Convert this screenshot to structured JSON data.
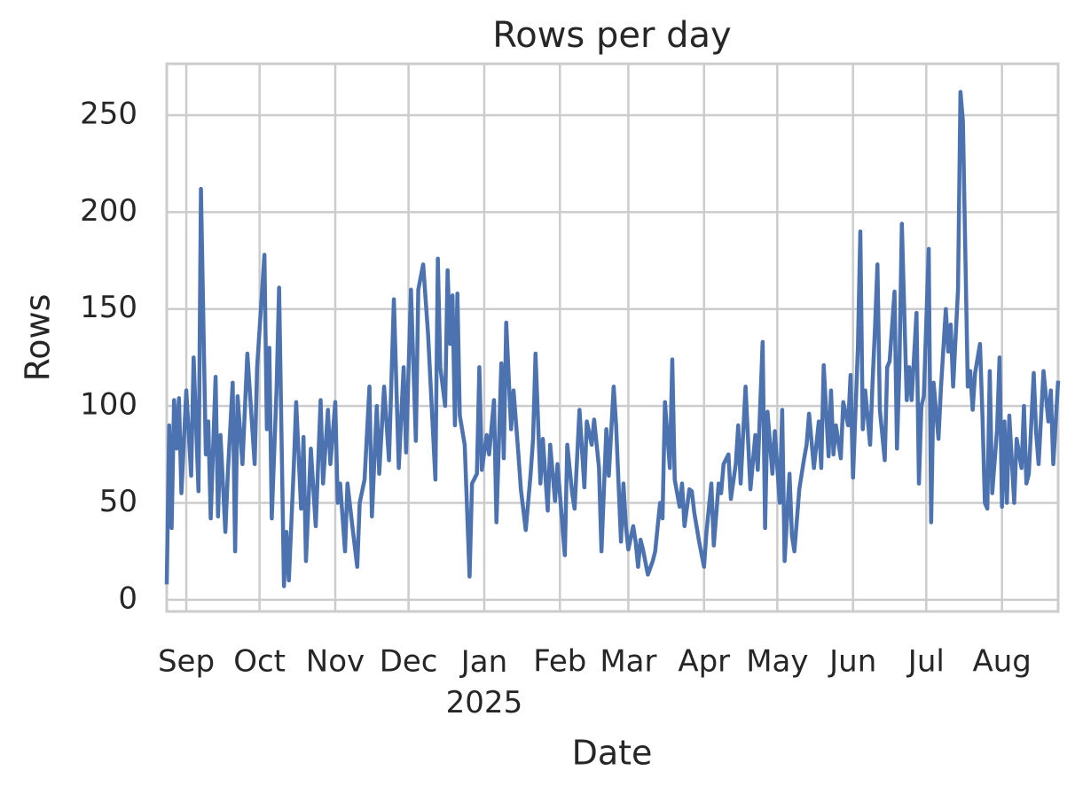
{
  "chart_data": {
    "type": "line",
    "title": "Rows per day",
    "xlabel": "Date",
    "ylabel": "Rows",
    "color": "#4c72b0",
    "grid": true,
    "xlim": [
      "2024-08-24",
      "2025-08-24"
    ],
    "xticks": [
      {
        "value": "2024-09-01",
        "label": "Sep"
      },
      {
        "value": "2024-10-01",
        "label": "Oct"
      },
      {
        "value": "2024-11-01",
        "label": "Nov"
      },
      {
        "value": "2024-12-01",
        "label": "Dec"
      },
      {
        "value": "2025-01-01",
        "label": "Jan\n2025"
      },
      {
        "value": "2025-02-01",
        "label": "Feb"
      },
      {
        "value": "2025-03-01",
        "label": "Mar"
      },
      {
        "value": "2025-04-01",
        "label": "Apr"
      },
      {
        "value": "2025-05-01",
        "label": "May"
      },
      {
        "value": "2025-06-01",
        "label": "Jun"
      },
      {
        "value": "2025-07-01",
        "label": "Jul"
      },
      {
        "value": "2025-08-01",
        "label": "Aug"
      }
    ],
    "ylim": [
      -6,
      276.5
    ],
    "yticks": [
      0,
      50,
      100,
      150,
      200,
      250
    ],
    "x": [
      "2024-08-24",
      "2024-08-25",
      "2024-08-26",
      "2024-08-27",
      "2024-08-28",
      "2024-08-29",
      "2024-08-30",
      "2024-09-01",
      "2024-09-03",
      "2024-09-04",
      "2024-09-06",
      "2024-09-07",
      "2024-09-09",
      "2024-09-10",
      "2024-09-11",
      "2024-09-13",
      "2024-09-14",
      "2024-09-15",
      "2024-09-17",
      "2024-09-18",
      "2024-09-20",
      "2024-09-21",
      "2024-09-22",
      "2024-09-24",
      "2024-09-26",
      "2024-09-29",
      "2024-09-30",
      "2024-10-03",
      "2024-10-04",
      "2024-10-05",
      "2024-10-06",
      "2024-10-08",
      "2024-10-09",
      "2024-10-11",
      "2024-10-12",
      "2024-10-13",
      "2024-10-15",
      "2024-10-16",
      "2024-10-18",
      "2024-10-19",
      "2024-10-20",
      "2024-10-22",
      "2024-10-24",
      "2024-10-26",
      "2024-10-27",
      "2024-10-29",
      "2024-10-30",
      "2024-11-01",
      "2024-11-02",
      "2024-11-03",
      "2024-11-05",
      "2024-11-06",
      "2024-11-08",
      "2024-11-10",
      "2024-11-11",
      "2024-11-13",
      "2024-11-15",
      "2024-11-16",
      "2024-11-18",
      "2024-11-19",
      "2024-11-21",
      "2024-11-23",
      "2024-11-25",
      "2024-11-27",
      "2024-11-29",
      "2024-11-30",
      "2024-12-02",
      "2024-12-04",
      "2024-12-05",
      "2024-12-07",
      "2024-12-08",
      "2024-12-09",
      "2024-12-12",
      "2024-12-13",
      "2024-12-14",
      "2024-12-16",
      "2024-12-17",
      "2024-12-18",
      "2024-12-19",
      "2024-12-20",
      "2024-12-21",
      "2024-12-22",
      "2024-12-24",
      "2024-12-26",
      "2024-12-27",
      "2024-12-29",
      "2024-12-30",
      "2024-12-31",
      "2025-01-02",
      "2025-01-03",
      "2025-01-05",
      "2025-01-06",
      "2025-01-08",
      "2025-01-09",
      "2025-01-10",
      "2025-01-12",
      "2025-01-13",
      "2025-01-15",
      "2025-01-16",
      "2025-01-18",
      "2025-01-20",
      "2025-01-21",
      "2025-01-22",
      "2025-01-24",
      "2025-01-25",
      "2025-01-27",
      "2025-01-28",
      "2025-01-30",
      "2025-01-31",
      "2025-02-03",
      "2025-02-04",
      "2025-02-06",
      "2025-02-07",
      "2025-02-09",
      "2025-02-11",
      "2025-02-12",
      "2025-02-14",
      "2025-02-15",
      "2025-02-17",
      "2025-02-18",
      "2025-02-20",
      "2025-02-21",
      "2025-02-23",
      "2025-02-24",
      "2025-02-26",
      "2025-02-27",
      "2025-02-28",
      "2025-03-01",
      "2025-03-03",
      "2025-03-04",
      "2025-03-05",
      "2025-03-06",
      "2025-03-07",
      "2025-03-09",
      "2025-03-11",
      "2025-03-12",
      "2025-03-14",
      "2025-03-15",
      "2025-03-16",
      "2025-03-18",
      "2025-03-19",
      "2025-03-20",
      "2025-03-22",
      "2025-03-23",
      "2025-03-24",
      "2025-03-26",
      "2025-03-27",
      "2025-03-28",
      "2025-03-30",
      "2025-04-01",
      "2025-04-02",
      "2025-04-04",
      "2025-04-05",
      "2025-04-07",
      "2025-04-08",
      "2025-04-09",
      "2025-04-11",
      "2025-04-12",
      "2025-04-14",
      "2025-04-15",
      "2025-04-16",
      "2025-04-18",
      "2025-04-20",
      "2025-04-22",
      "2025-04-23",
      "2025-04-25",
      "2025-04-26",
      "2025-04-27",
      "2025-04-29",
      "2025-04-30",
      "2025-05-02",
      "2025-05-03",
      "2025-05-04",
      "2025-05-06",
      "2025-05-07",
      "2025-05-08",
      "2025-05-10",
      "2025-05-12",
      "2025-05-13",
      "2025-05-14",
      "2025-05-16",
      "2025-05-18",
      "2025-05-19",
      "2025-05-20",
      "2025-05-22",
      "2025-05-23",
      "2025-05-24",
      "2025-05-25",
      "2025-05-27",
      "2025-05-28",
      "2025-05-30",
      "2025-05-31",
      "2025-06-01",
      "2025-06-03",
      "2025-06-04",
      "2025-06-05",
      "2025-06-06",
      "2025-06-08",
      "2025-06-09",
      "2025-06-10",
      "2025-06-11",
      "2025-06-12",
      "2025-06-14",
      "2025-06-15",
      "2025-06-16",
      "2025-06-18",
      "2025-06-19",
      "2025-06-20",
      "2025-06-21",
      "2025-06-23",
      "2025-06-24",
      "2025-06-25",
      "2025-06-27",
      "2025-06-28",
      "2025-06-29",
      "2025-06-30",
      "2025-07-02",
      "2025-07-03",
      "2025-07-04",
      "2025-07-06",
      "2025-07-07",
      "2025-07-09",
      "2025-07-10",
      "2025-07-11",
      "2025-07-12",
      "2025-07-14",
      "2025-07-15",
      "2025-07-16",
      "2025-07-18",
      "2025-07-19",
      "2025-07-20",
      "2025-07-21",
      "2025-07-23",
      "2025-07-24",
      "2025-07-25",
      "2025-07-26",
      "2025-07-27",
      "2025-07-28",
      "2025-07-30",
      "2025-07-31",
      "2025-08-01",
      "2025-08-02",
      "2025-08-03",
      "2025-08-04",
      "2025-08-06",
      "2025-08-07",
      "2025-08-09",
      "2025-08-10",
      "2025-08-11",
      "2025-08-12",
      "2025-08-14",
      "2025-08-15",
      "2025-08-16",
      "2025-08-18",
      "2025-08-20",
      "2025-08-21",
      "2025-08-22",
      "2025-08-24"
    ],
    "values": [
      8,
      90,
      37,
      103,
      78,
      104,
      55,
      108,
      64,
      125,
      56,
      212,
      75,
      92,
      42,
      115,
      43,
      85,
      35,
      65,
      112,
      25,
      105,
      70,
      127,
      70,
      120,
      178,
      88,
      130,
      42,
      110,
      161,
      7,
      35,
      10,
      68,
      102,
      47,
      84,
      20,
      78,
      38,
      103,
      60,
      98,
      70,
      102,
      50,
      60,
      25,
      60,
      38,
      17,
      50,
      62,
      110,
      43,
      100,
      65,
      110,
      72,
      155,
      68,
      120,
      76,
      160,
      82,
      160,
      173,
      155,
      137,
      62,
      176,
      120,
      100,
      170,
      132,
      157,
      90,
      158,
      95,
      80,
      12,
      60,
      65,
      120,
      67,
      85,
      75,
      103,
      40,
      122,
      73,
      143,
      88,
      108,
      75,
      57,
      36,
      65,
      83,
      127,
      60,
      83,
      46,
      80,
      51,
      70,
      23,
      80,
      55,
      47,
      98,
      58,
      92,
      80,
      93,
      68,
      25,
      88,
      64,
      110,
      90,
      30,
      60,
      38,
      26,
      38,
      30,
      17,
      31,
      26,
      13,
      20,
      25,
      50,
      42,
      102,
      68,
      124,
      62,
      48,
      60,
      38,
      57,
      56,
      45,
      30,
      17,
      35,
      60,
      28,
      60,
      55,
      70,
      75,
      52,
      70,
      90,
      60,
      110,
      57,
      85,
      67,
      133,
      37,
      97,
      65,
      87,
      50,
      98,
      20,
      65,
      33,
      25,
      57,
      73,
      80,
      96,
      68,
      92,
      68,
      121,
      74,
      108,
      75,
      90,
      73,
      102,
      90,
      116,
      63,
      130,
      190,
      88,
      108,
      80,
      112,
      140,
      173,
      98,
      72,
      120,
      123,
      159,
      78,
      120,
      194,
      103,
      120,
      103,
      148,
      60,
      100,
      105,
      181,
      40,
      112,
      83,
      109,
      150,
      128,
      142,
      110,
      160,
      262,
      247,
      110,
      118,
      98,
      117,
      132,
      95,
      50,
      47,
      118,
      55,
      88,
      125,
      48,
      92,
      50,
      95,
      50,
      83,
      68,
      100,
      60,
      65,
      117,
      86,
      70,
      118,
      92,
      108,
      70,
      113
    ]
  }
}
